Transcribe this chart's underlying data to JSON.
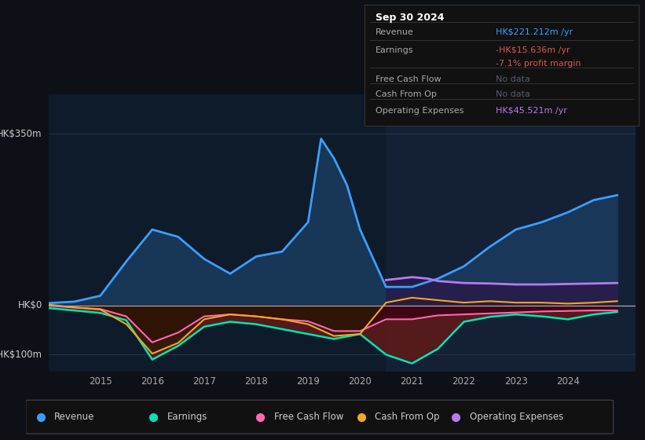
{
  "bg_color": "#0d1117",
  "panel_bg": "#0d1b2a",
  "title_box": {
    "title": "Sep 30 2024",
    "rows": [
      {
        "label": "Revenue",
        "value": "HK$221.212m /yr",
        "value_color": "#3b9eff"
      },
      {
        "label": "Earnings",
        "value": "-HK$15.636m /yr",
        "value_color": "#e05252"
      },
      {
        "label": "",
        "value": "-7.1% profit margin",
        "value_color": "#e05252"
      },
      {
        "label": "Free Cash Flow",
        "value": "No data",
        "value_color": "#555e6b"
      },
      {
        "label": "Cash From Op",
        "value": "No data",
        "value_color": "#555e6b"
      },
      {
        "label": "Operating Expenses",
        "value": "HK$45.521m /yr",
        "value_color": "#b57bee"
      }
    ]
  },
  "ylabel_top": "HK$350m",
  "ylabel_zero": "HK$0",
  "ylabel_neg": "-HK$100m",
  "ylim": [
    -135,
    430
  ],
  "xlim": [
    2014.0,
    2025.3
  ],
  "shade_start_x": 2020.5,
  "years": [
    2015,
    2016,
    2017,
    2018,
    2019,
    2020,
    2021,
    2022,
    2023,
    2024
  ],
  "revenue": {
    "x": [
      2014.0,
      2014.5,
      2015.0,
      2015.5,
      2016.0,
      2016.5,
      2017.0,
      2017.5,
      2018.0,
      2018.5,
      2019.0,
      2019.25,
      2019.5,
      2019.75,
      2020.0,
      2020.5,
      2021.0,
      2021.5,
      2022.0,
      2022.5,
      2023.0,
      2023.5,
      2024.0,
      2024.5,
      2024.95
    ],
    "y": [
      5,
      8,
      20,
      90,
      155,
      140,
      95,
      65,
      100,
      110,
      170,
      340,
      300,
      245,
      155,
      38,
      38,
      55,
      80,
      120,
      155,
      170,
      190,
      215,
      225
    ],
    "color": "#3b9eff",
    "fill_color": "#1a3a5c",
    "lw": 2.0
  },
  "earnings": {
    "x": [
      2014.0,
      2014.5,
      2015.0,
      2015.5,
      2016.0,
      2016.5,
      2017.0,
      2017.5,
      2018.0,
      2018.5,
      2019.0,
      2019.5,
      2020.0,
      2020.5,
      2021.0,
      2021.5,
      2022.0,
      2022.5,
      2023.0,
      2023.5,
      2024.0,
      2024.5,
      2024.95
    ],
    "y": [
      -5,
      -10,
      -15,
      -30,
      -110,
      -82,
      -43,
      -33,
      -38,
      -48,
      -58,
      -68,
      -58,
      -100,
      -118,
      -88,
      -33,
      -23,
      -18,
      -22,
      -28,
      -18,
      -13
    ],
    "color": "#00e5b3",
    "fill_color": "#5a1a1a",
    "lw": 1.8
  },
  "free_cash_flow": {
    "x": [
      2014.0,
      2014.5,
      2015.0,
      2015.5,
      2016.0,
      2016.5,
      2017.0,
      2017.5,
      2018.0,
      2018.5,
      2019.0,
      2019.5,
      2020.0,
      2020.5,
      2021.0,
      2021.5,
      2022.0,
      2022.5,
      2023.0,
      2023.5,
      2024.0,
      2024.5,
      2024.95
    ],
    "y": [
      0,
      -4,
      -7,
      -22,
      -75,
      -55,
      -22,
      -18,
      -22,
      -28,
      -32,
      -52,
      -52,
      -28,
      -28,
      -20,
      -18,
      -16,
      -14,
      -12,
      -11,
      -10,
      -10
    ],
    "color": "#ff69b4",
    "fill_color": "#3a0015",
    "lw": 1.5
  },
  "cash_from_op": {
    "x": [
      2014.0,
      2014.5,
      2015.0,
      2015.5,
      2016.0,
      2016.5,
      2017.0,
      2017.5,
      2018.0,
      2018.5,
      2019.0,
      2019.5,
      2020.0,
      2020.5,
      2021.0,
      2021.5,
      2022.0,
      2022.5,
      2023.0,
      2023.5,
      2024.0,
      2024.5,
      2024.95
    ],
    "y": [
      2,
      -4,
      -8,
      -38,
      -98,
      -76,
      -28,
      -18,
      -22,
      -28,
      -38,
      -62,
      -58,
      6,
      16,
      11,
      6,
      9,
      6,
      6,
      4,
      6,
      9
    ],
    "color": "#f5a623",
    "fill_color": "#2a1a00",
    "lw": 1.5
  },
  "op_expenses": {
    "x": [
      2020.5,
      2021.0,
      2021.3,
      2021.5,
      2022.0,
      2022.5,
      2023.0,
      2023.5,
      2024.0,
      2024.5,
      2024.95
    ],
    "y": [
      52,
      58,
      55,
      50,
      46,
      45,
      43,
      43,
      44,
      45,
      46
    ],
    "color": "#b57bee",
    "fill_color": "#2a1a4a",
    "lw": 2.0
  },
  "legend": [
    {
      "label": "Revenue",
      "color": "#3b9eff"
    },
    {
      "label": "Earnings",
      "color": "#00e5b3"
    },
    {
      "label": "Free Cash Flow",
      "color": "#ff69b4"
    },
    {
      "label": "Cash From Op",
      "color": "#f5a623"
    },
    {
      "label": "Operating Expenses",
      "color": "#b57bee"
    }
  ]
}
